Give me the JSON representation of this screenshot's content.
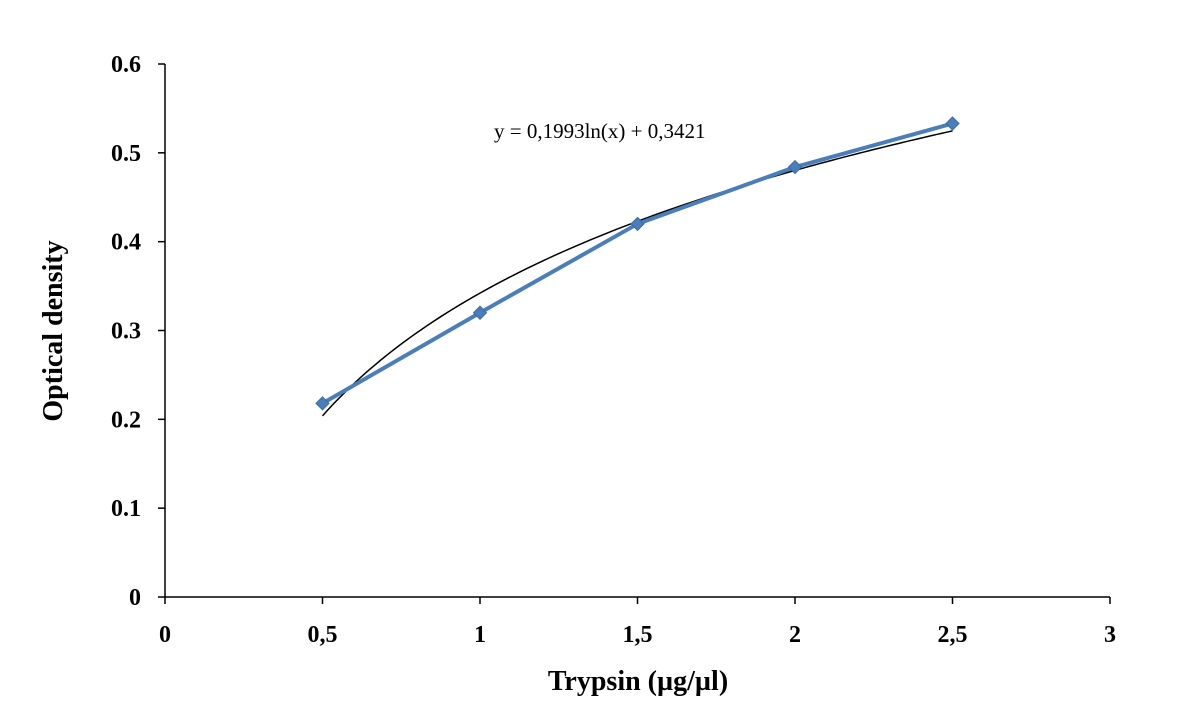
{
  "chart_data": {
    "type": "line",
    "title": "",
    "xlabel": "Trypsin (µg/µl)",
    "ylabel": "Optical density",
    "xlim": [
      0,
      3
    ],
    "ylim": [
      0,
      0.6
    ],
    "x_ticks": [
      0,
      0.5,
      1,
      1.5,
      2,
      2.5,
      3
    ],
    "x_tick_labels": [
      "0",
      "0,5",
      "1",
      "1,5",
      "2",
      "2,5",
      "3"
    ],
    "y_ticks": [
      0,
      0.1,
      0.2,
      0.3,
      0.4,
      0.5,
      0.6
    ],
    "y_tick_labels": [
      "0",
      "0.1",
      "0.2",
      "0.3",
      "0.4",
      "0.5",
      "0.6"
    ],
    "grid": false,
    "legend": "none",
    "series": [
      {
        "x": [
          0.5,
          1,
          1.5,
          2,
          2.5
        ],
        "y": [
          0.218,
          0.32,
          0.42,
          0.484,
          0.533
        ],
        "color": "#4a7ebb",
        "marker": "diamond"
      }
    ],
    "trendline": {
      "type": "logarithmic",
      "a": 0.1993,
      "b": 0.3421,
      "x_range": [
        0.5,
        2.5
      ],
      "color": "#000000",
      "equation_label": "y = 0,1993ln(x) + 0,3421"
    }
  }
}
